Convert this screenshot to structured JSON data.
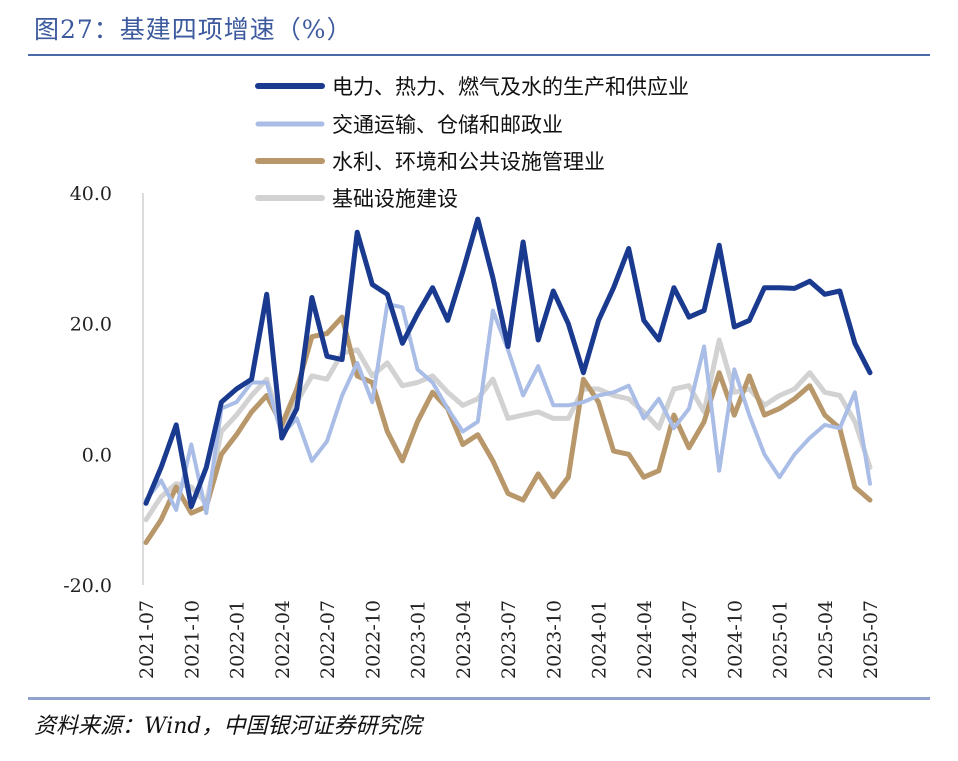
{
  "title": "图27：基建四项增速（%）",
  "source": "资料来源：Wind，中国银河证券研究院",
  "chart_data": {
    "type": "line",
    "title": "基建四项增速（%）",
    "ylim": [
      -20,
      40
    ],
    "y_ticks": [
      "40.0",
      "20.0",
      "0.0",
      "-20.0"
    ],
    "y_tick_values": [
      40,
      20,
      0,
      -20
    ],
    "x_tick_labels": [
      "2021-07",
      "2021-10",
      "2022-01",
      "2022-04",
      "2022-07",
      "2022-10",
      "2023-01",
      "2023-04",
      "2023-07",
      "2023-10",
      "2024-01",
      "2024-04",
      "2024-07",
      "2024-10",
      "2025-01",
      "2025-04",
      "2025-07"
    ],
    "x_tick_index": [
      0,
      3,
      6,
      9,
      12,
      15,
      18,
      21,
      24,
      27,
      30,
      33,
      36,
      39,
      42,
      45,
      48
    ],
    "x": [
      "2021-07",
      "2021-08",
      "2021-09",
      "2021-10",
      "2021-11",
      "2021-12",
      "2022-01",
      "2022-02",
      "2022-03",
      "2022-04",
      "2022-05",
      "2022-06",
      "2022-07",
      "2022-08",
      "2022-09",
      "2022-10",
      "2022-11",
      "2022-12",
      "2023-01",
      "2023-02",
      "2023-03",
      "2023-04",
      "2023-05",
      "2023-06",
      "2023-07",
      "2023-08",
      "2023-09",
      "2023-10",
      "2023-11",
      "2023-12",
      "2024-01",
      "2024-02",
      "2024-03",
      "2024-04",
      "2024-05",
      "2024-06",
      "2024-07",
      "2024-08",
      "2024-09",
      "2024-10",
      "2024-11",
      "2024-12",
      "2025-01",
      "2025-02",
      "2025-03",
      "2025-04",
      "2025-05",
      "2025-06",
      "2025-07"
    ],
    "legend_position": "top",
    "grid": false,
    "series": [
      {
        "name": "电力、热力、燃气及水的生产和供应业",
        "color": "#1a3a8f",
        "width": 5,
        "values": [
          -7.5,
          -2,
          4.5,
          -8,
          -2,
          8,
          10,
          11.5,
          24.5,
          2.5,
          7,
          24,
          15,
          14.5,
          34,
          26,
          24.5,
          17,
          21.5,
          25.5,
          20.5,
          28,
          36,
          27,
          16.5,
          32.5,
          17.5,
          25,
          20,
          12.5,
          20.5,
          25.5,
          31.5,
          20.5,
          17.5,
          25.5,
          21,
          22,
          32,
          19.5,
          20.5,
          25.5,
          25.5,
          25.4,
          26.5,
          24.5,
          25,
          17,
          12.5
        ]
      },
      {
        "name": "交通运输、仓储和邮政业",
        "color": "#a9bde6",
        "width": 4,
        "values": [
          -7,
          -4,
          -8.5,
          1.5,
          -9,
          7,
          8,
          11,
          11,
          3,
          5.5,
          -1,
          2,
          9,
          14,
          8,
          23,
          22.5,
          13,
          11,
          7,
          3.5,
          5,
          22,
          16,
          9,
          13.5,
          7.5,
          7.5,
          8,
          9,
          9.5,
          10.5,
          5.5,
          8.5,
          4,
          7,
          16.5,
          -2.5,
          13,
          6,
          0,
          -3.5,
          0,
          2.5,
          4.5,
          4,
          9.5,
          -4.5
        ]
      },
      {
        "name": "水利、环境和公共设施管理业",
        "color": "#b8976a",
        "width": 5,
        "values": [
          -13.5,
          -10,
          -5,
          -9,
          -8,
          0,
          3,
          6.5,
          9,
          4.5,
          10,
          18,
          18.5,
          21,
          12,
          11,
          3.5,
          -1,
          5,
          9.5,
          7,
          1.5,
          3,
          -1,
          -6,
          -7,
          -3,
          -6.5,
          -3.5,
          11.5,
          8,
          0.5,
          0,
          -3.5,
          -2.5,
          6,
          1,
          5,
          12.5,
          6,
          12,
          6,
          7,
          8.5,
          10.5,
          6,
          4,
          -5,
          -7
        ]
      },
      {
        "name": "基础设施建设",
        "color": "#d2d2d2",
        "width": 5,
        "values": [
          -10,
          -6.5,
          -4.5,
          -5,
          -7.5,
          3.5,
          6,
          9,
          11.5,
          4,
          8,
          12,
          11.5,
          15.5,
          16,
          12,
          14,
          10.5,
          11,
          12,
          9.5,
          7.5,
          8.5,
          11.5,
          5.5,
          6,
          6.5,
          5.5,
          5.5,
          10,
          10,
          9,
          8.5,
          6.5,
          4,
          10,
          10.5,
          6.5,
          17.5,
          9.5,
          10,
          7.5,
          9,
          10,
          12.5,
          9.5,
          9,
          5,
          -2
        ]
      }
    ]
  }
}
